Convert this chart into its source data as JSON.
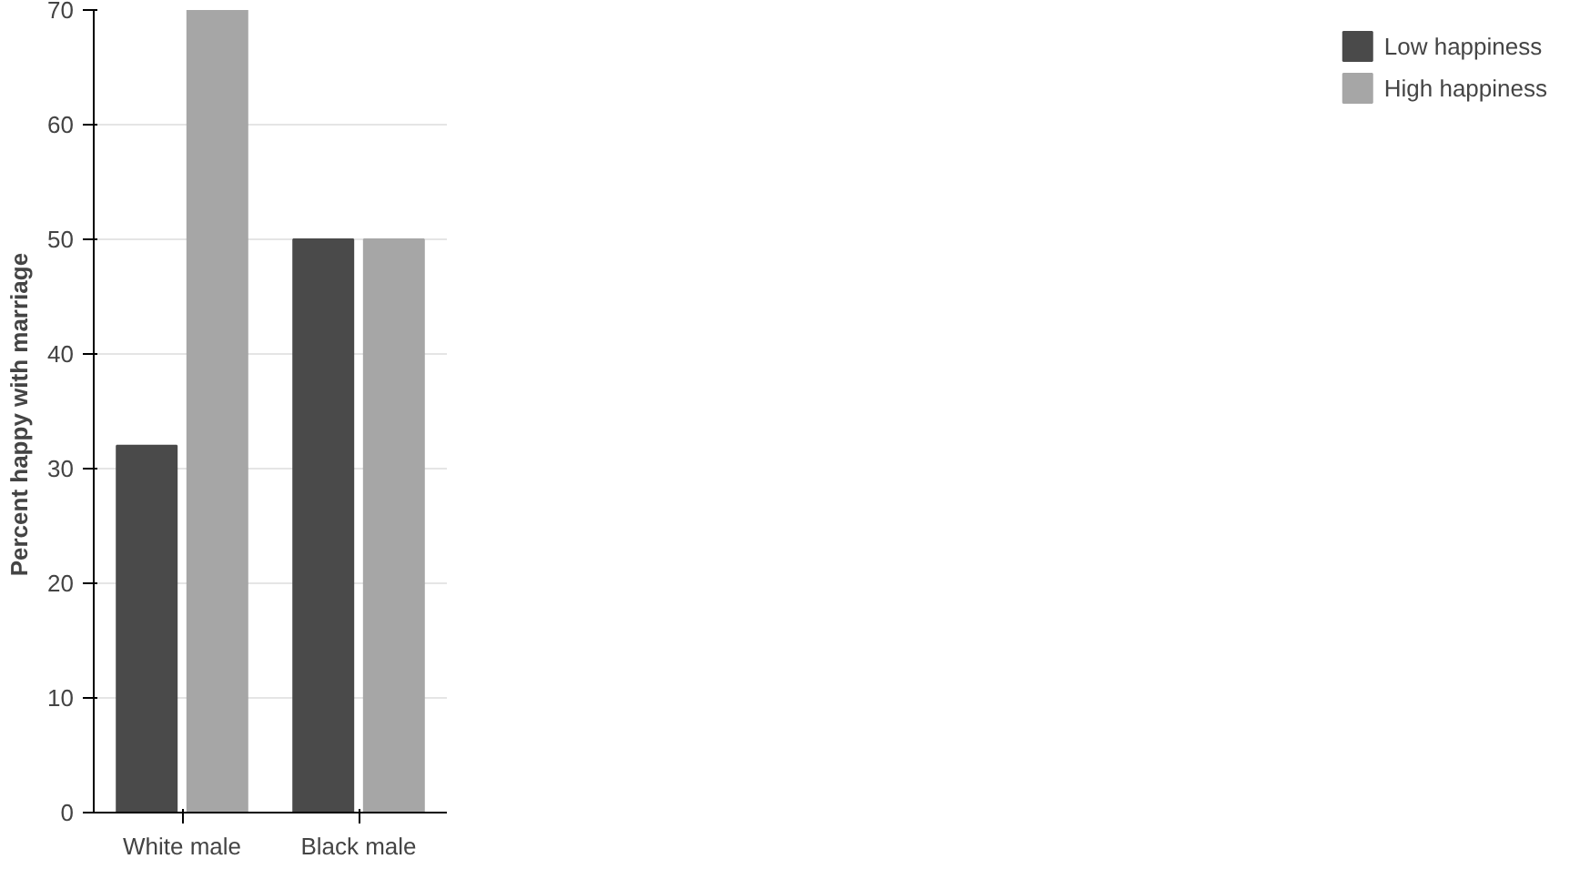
{
  "chart_data": {
    "type": "bar",
    "ylabel": "Percent  happy with marriage",
    "categories": [
      "White male",
      "Black male"
    ],
    "series": [
      {
        "name": "Low happiness",
        "color": "#4a4a4a",
        "values": [
          32,
          50
        ]
      },
      {
        "name": "High happiness",
        "color": "#a6a6a6",
        "values": [
          70,
          50
        ]
      }
    ],
    "ylim": [
      0,
      70
    ],
    "yticks": [
      0,
      10,
      20,
      30,
      40,
      50,
      60,
      70
    ],
    "grid": "y",
    "legend": "right"
  }
}
